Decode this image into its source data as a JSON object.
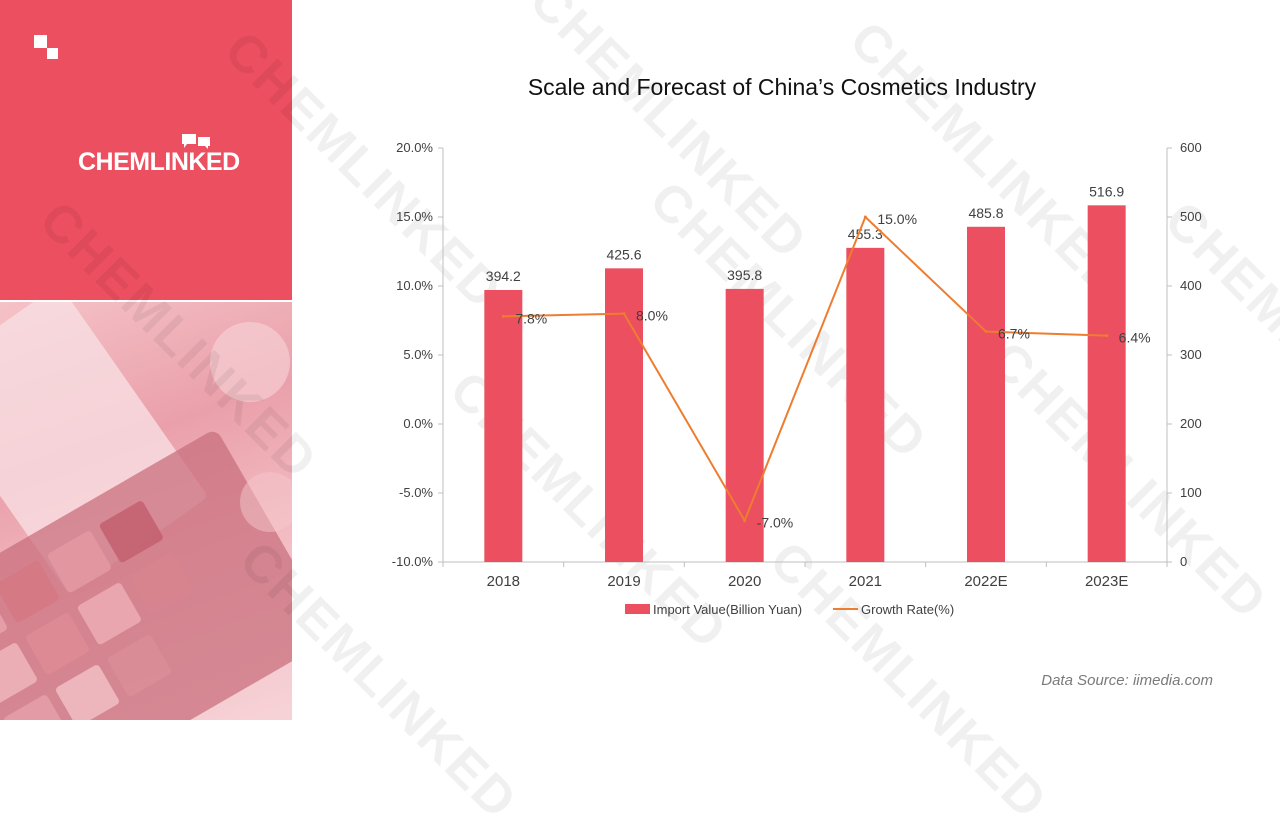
{
  "brand": {
    "name": "CHEMLINKED",
    "accent": "#ec4f5f"
  },
  "watermark_text": "CHEMLINKED",
  "source": "Data Source: iimedia.com",
  "chart_data": {
    "type": "bar",
    "title": "Scale and Forecast of China’s Cosmetics Industry",
    "categories": [
      "2018",
      "2019",
      "2020",
      "2021",
      "2022E",
      "2023E"
    ],
    "series": [
      {
        "name": "Import Value(Billion Yuan)",
        "type": "bar",
        "axis": "right",
        "color": "#ec4f5f",
        "values": [
          394.2,
          425.6,
          395.8,
          455.3,
          485.8,
          516.9
        ],
        "labels": [
          "394.2",
          "425.6",
          "395.8",
          "455.3",
          "485.8",
          "516.9"
        ]
      },
      {
        "name": "Growth Rate(%)",
        "type": "line",
        "axis": "left",
        "color": "#ed7d31",
        "values": [
          7.8,
          8.0,
          -7.0,
          15.0,
          6.7,
          6.4
        ],
        "labels": [
          "7.8%",
          "8.0%",
          "-7.0%",
          "15.0%",
          "6.7%",
          "6.4%"
        ]
      }
    ],
    "y_left": {
      "min": -10,
      "max": 20,
      "ticks": [
        "-10.0%",
        "-5.0%",
        "0.0%",
        "5.0%",
        "10.0%",
        "15.0%",
        "20.0%"
      ]
    },
    "y_right": {
      "min": 0,
      "max": 600,
      "ticks": [
        "0",
        "100",
        "200",
        "300",
        "400",
        "500",
        "600"
      ]
    },
    "grid": false,
    "legend": "bottom"
  }
}
